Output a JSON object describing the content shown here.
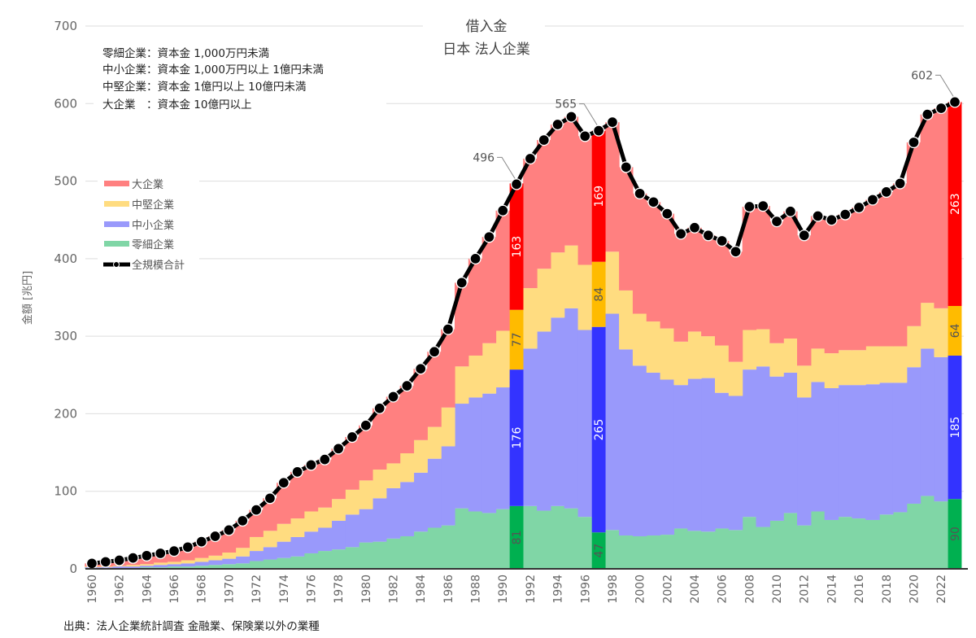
{
  "chart_data": {
    "type": "area",
    "title": "借入金",
    "subtitle": "日本 法人企業",
    "ylabel": "金額 [兆円]",
    "xlabel": "",
    "ylim": [
      0,
      700
    ],
    "yticks": [
      0,
      100,
      200,
      300,
      400,
      500,
      600,
      700
    ],
    "grid": true,
    "legend_position": "top-left",
    "source": "出典：法人企業統計調査 金融業、保険業以外の業種",
    "notes": [
      "零細企業：資本金 1,000万円未満",
      "中小企業：資本金 1,000万円以上 1億円未満",
      "中堅企業：資本金 1億円以上 10億円未満",
      "大企業　：資本金 10億円以上"
    ],
    "x": [
      1960,
      1961,
      1962,
      1963,
      1964,
      1965,
      1966,
      1967,
      1968,
      1969,
      1970,
      1971,
      1972,
      1973,
      1974,
      1975,
      1976,
      1977,
      1978,
      1979,
      1980,
      1981,
      1982,
      1983,
      1984,
      1985,
      1986,
      1987,
      1988,
      1989,
      1990,
      1991,
      1992,
      1993,
      1994,
      1995,
      1996,
      1997,
      1998,
      1999,
      2000,
      2001,
      2002,
      2003,
      2004,
      2005,
      2006,
      2007,
      2008,
      2009,
      2010,
      2011,
      2012,
      2013,
      2014,
      2015,
      2016,
      2017,
      2018,
      2019,
      2020,
      2021,
      2022,
      2023
    ],
    "series": [
      {
        "name": "零細企業",
        "color": "#80d6a6",
        "highlight_color": "#00b050",
        "values": [
          1,
          1,
          1,
          1,
          2,
          2,
          3,
          3,
          4,
          5,
          6,
          7,
          10,
          12,
          14,
          16,
          20,
          23,
          25,
          28,
          34,
          35,
          39,
          42,
          48,
          53,
          56,
          78,
          74,
          72,
          77,
          81,
          81,
          75,
          81,
          78,
          67,
          47,
          50,
          43,
          42,
          43,
          44,
          52,
          49,
          48,
          52,
          50,
          67,
          54,
          62,
          72,
          56,
          74,
          63,
          67,
          65,
          63,
          70,
          73,
          84,
          94,
          87,
          90
        ]
      },
      {
        "name": "中小企業",
        "color": "#9999fb",
        "highlight_color": "#3333ff",
        "values": [
          1,
          1,
          2,
          2,
          2,
          3,
          3,
          4,
          5,
          6,
          7,
          9,
          13,
          16,
          21,
          25,
          28,
          30,
          37,
          42,
          43,
          56,
          65,
          70,
          76,
          89,
          102,
          135,
          147,
          154,
          157,
          176,
          203,
          231,
          243,
          258,
          241,
          265,
          279,
          240,
          220,
          210,
          200,
          185,
          196,
          198,
          175,
          173,
          190,
          207,
          186,
          181,
          165,
          167,
          170,
          170,
          172,
          175,
          170,
          167,
          176,
          190,
          186,
          185
        ]
      },
      {
        "name": "中堅企業",
        "color": "#ffdc80",
        "highlight_color": "#ffbb00",
        "values": [
          1,
          1,
          1,
          2,
          2,
          3,
          3,
          4,
          5,
          6,
          8,
          11,
          18,
          21,
          23,
          24,
          26,
          26,
          28,
          32,
          37,
          37,
          32,
          37,
          42,
          41,
          50,
          48,
          54,
          65,
          73,
          77,
          78,
          81,
          84,
          81,
          84,
          84,
          80,
          76,
          67,
          66,
          66,
          56,
          61,
          54,
          61,
          44,
          51,
          48,
          43,
          44,
          41,
          43,
          45,
          45,
          45,
          49,
          47,
          47,
          53,
          59,
          63,
          64
        ]
      },
      {
        "name": "大企業",
        "color": "#ff8080",
        "highlight_color": "#ff0000",
        "values": [
          4,
          6,
          7,
          9,
          11,
          12,
          14,
          17,
          21,
          25,
          29,
          35,
          35,
          42,
          53,
          60,
          60,
          62,
          65,
          68,
          71,
          79,
          86,
          87,
          92,
          97,
          101,
          108,
          125,
          137,
          155,
          163,
          167,
          166,
          165,
          166,
          166,
          169,
          167,
          159,
          155,
          154,
          148,
          139,
          134,
          130,
          135,
          142,
          159,
          159,
          157,
          164,
          168,
          171,
          172,
          175,
          184,
          189,
          199,
          210,
          237,
          243,
          258,
          263
        ]
      },
      {
        "name": "全規模合計",
        "color": "#000000",
        "values": [
          7,
          9,
          11,
          14,
          17,
          20,
          23,
          28,
          35,
          42,
          50,
          62,
          76,
          91,
          111,
          125,
          134,
          141,
          155,
          170,
          185,
          207,
          222,
          236,
          258,
          280,
          309,
          369,
          400,
          428,
          462,
          496,
          529,
          553,
          573,
          583,
          558,
          565,
          576,
          518,
          484,
          473,
          458,
          432,
          440,
          430,
          423,
          409,
          467,
          468,
          448,
          461,
          430,
          455,
          450,
          457,
          466,
          476,
          486,
          497,
          550,
          586,
          594,
          602
        ]
      }
    ],
    "highlight_years": [
      1991,
      1997,
      2023
    ],
    "annotations": [
      {
        "year": 1991,
        "text": "496"
      },
      {
        "year": 1997,
        "text": "565"
      },
      {
        "year": 2023,
        "text": "602"
      }
    ]
  }
}
